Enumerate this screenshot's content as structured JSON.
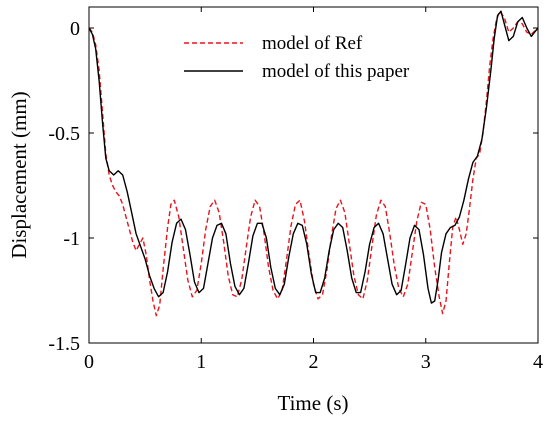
{
  "chart_data": {
    "type": "line",
    "title": "",
    "xlabel": "Time (s)",
    "ylabel": "Displacement (mm)",
    "xlim": [
      0,
      4
    ],
    "ylim": [
      -1.5,
      0.1
    ],
    "xticks": [
      0,
      1,
      2,
      3,
      4
    ],
    "xtick_labels": [
      "0",
      "1",
      "2",
      "3",
      "4"
    ],
    "yticks": [
      0,
      -0.5,
      -1,
      -1.5
    ],
    "ytick_labels": [
      "0",
      "-0.5",
      "-1",
      "-1.5"
    ],
    "grid": false,
    "legend_position": "top-right",
    "series": [
      {
        "name": "model of Ref",
        "color": "#e8141b",
        "dash": "dashed",
        "points": [
          [
            0,
            0
          ],
          [
            0.03,
            -0.02
          ],
          [
            0.06,
            -0.08
          ],
          [
            0.09,
            -0.2
          ],
          [
            0.12,
            -0.4
          ],
          [
            0.15,
            -0.6
          ],
          [
            0.18,
            -0.7
          ],
          [
            0.21,
            -0.75
          ],
          [
            0.24,
            -0.78
          ],
          [
            0.27,
            -0.8
          ],
          [
            0.3,
            -0.84
          ],
          [
            0.33,
            -0.9
          ],
          [
            0.36,
            -0.96
          ],
          [
            0.39,
            -1.02
          ],
          [
            0.42,
            -1.06
          ],
          [
            0.45,
            -1.03
          ],
          [
            0.48,
            -1.0
          ],
          [
            0.51,
            -1.08
          ],
          [
            0.54,
            -1.2
          ],
          [
            0.57,
            -1.3
          ],
          [
            0.6,
            -1.37
          ],
          [
            0.63,
            -1.32
          ],
          [
            0.66,
            -1.15
          ],
          [
            0.7,
            -0.95
          ],
          [
            0.73,
            -0.84
          ],
          [
            0.76,
            -0.82
          ],
          [
            0.8,
            -0.9
          ],
          [
            0.84,
            -1.05
          ],
          [
            0.88,
            -1.2
          ],
          [
            0.92,
            -1.28
          ],
          [
            0.96,
            -1.25
          ],
          [
            1.0,
            -1.12
          ],
          [
            1.04,
            -0.96
          ],
          [
            1.08,
            -0.85
          ],
          [
            1.12,
            -0.82
          ],
          [
            1.16,
            -0.88
          ],
          [
            1.2,
            -1.02
          ],
          [
            1.24,
            -1.18
          ],
          [
            1.28,
            -1.27
          ],
          [
            1.32,
            -1.28
          ],
          [
            1.36,
            -1.2
          ],
          [
            1.4,
            -1.05
          ],
          [
            1.44,
            -0.9
          ],
          [
            1.48,
            -0.82
          ],
          [
            1.52,
            -0.85
          ],
          [
            1.56,
            -0.98
          ],
          [
            1.6,
            -1.14
          ],
          [
            1.64,
            -1.25
          ],
          [
            1.68,
            -1.29
          ],
          [
            1.72,
            -1.25
          ],
          [
            1.76,
            -1.1
          ],
          [
            1.8,
            -0.94
          ],
          [
            1.84,
            -0.84
          ],
          [
            1.88,
            -0.82
          ],
          [
            1.92,
            -0.92
          ],
          [
            1.96,
            -1.08
          ],
          [
            2.0,
            -1.22
          ],
          [
            2.04,
            -1.29
          ],
          [
            2.08,
            -1.27
          ],
          [
            2.12,
            -1.15
          ],
          [
            2.16,
            -0.99
          ],
          [
            2.2,
            -0.86
          ],
          [
            2.24,
            -0.82
          ],
          [
            2.28,
            -0.88
          ],
          [
            2.32,
            -1.03
          ],
          [
            2.36,
            -1.18
          ],
          [
            2.4,
            -1.27
          ],
          [
            2.44,
            -1.29
          ],
          [
            2.48,
            -1.2
          ],
          [
            2.52,
            -1.04
          ],
          [
            2.56,
            -0.89
          ],
          [
            2.6,
            -0.82
          ],
          [
            2.64,
            -0.85
          ],
          [
            2.68,
            -0.98
          ],
          [
            2.72,
            -1.13
          ],
          [
            2.76,
            -1.24
          ],
          [
            2.8,
            -1.28
          ],
          [
            2.84,
            -1.22
          ],
          [
            2.88,
            -1.07
          ],
          [
            2.92,
            -0.92
          ],
          [
            2.96,
            -0.83
          ],
          [
            3.0,
            -0.84
          ],
          [
            3.04,
            -0.96
          ],
          [
            3.08,
            -1.14
          ],
          [
            3.12,
            -1.28
          ],
          [
            3.15,
            -1.36
          ],
          [
            3.18,
            -1.3
          ],
          [
            3.21,
            -1.12
          ],
          [
            3.24,
            -0.95
          ],
          [
            3.27,
            -0.9
          ],
          [
            3.3,
            -0.96
          ],
          [
            3.33,
            -1.03
          ],
          [
            3.36,
            -0.98
          ],
          [
            3.39,
            -0.86
          ],
          [
            3.42,
            -0.72
          ],
          [
            3.45,
            -0.62
          ],
          [
            3.48,
            -0.6
          ],
          [
            3.51,
            -0.5
          ],
          [
            3.54,
            -0.35
          ],
          [
            3.57,
            -0.18
          ],
          [
            3.6,
            -0.05
          ],
          [
            3.63,
            0.04
          ],
          [
            3.66,
            0.08
          ],
          [
            3.7,
            0.05
          ],
          [
            3.74,
            -0.02
          ],
          [
            3.78,
            0.0
          ],
          [
            3.82,
            0.03
          ],
          [
            3.86,
            0.02
          ],
          [
            3.9,
            -0.02
          ],
          [
            3.94,
            -0.03
          ],
          [
            3.98,
            -0.01
          ],
          [
            4.0,
            0.0
          ]
        ]
      },
      {
        "name": "model of this paper",
        "color": "#000000",
        "dash": "solid",
        "points": [
          [
            0,
            0
          ],
          [
            0.03,
            -0.03
          ],
          [
            0.06,
            -0.1
          ],
          [
            0.09,
            -0.25
          ],
          [
            0.12,
            -0.45
          ],
          [
            0.15,
            -0.62
          ],
          [
            0.18,
            -0.68
          ],
          [
            0.22,
            -0.7
          ],
          [
            0.26,
            -0.68
          ],
          [
            0.3,
            -0.7
          ],
          [
            0.34,
            -0.78
          ],
          [
            0.38,
            -0.88
          ],
          [
            0.42,
            -0.98
          ],
          [
            0.46,
            -1.04
          ],
          [
            0.5,
            -1.1
          ],
          [
            0.54,
            -1.18
          ],
          [
            0.58,
            -1.24
          ],
          [
            0.62,
            -1.28
          ],
          [
            0.66,
            -1.26
          ],
          [
            0.7,
            -1.16
          ],
          [
            0.74,
            -1.02
          ],
          [
            0.78,
            -0.93
          ],
          [
            0.82,
            -0.91
          ],
          [
            0.86,
            -0.96
          ],
          [
            0.9,
            -1.08
          ],
          [
            0.94,
            -1.21
          ],
          [
            0.98,
            -1.26
          ],
          [
            1.02,
            -1.24
          ],
          [
            1.06,
            -1.12
          ],
          [
            1.1,
            -1.0
          ],
          [
            1.14,
            -0.94
          ],
          [
            1.18,
            -0.93
          ],
          [
            1.22,
            -0.98
          ],
          [
            1.26,
            -1.12
          ],
          [
            1.3,
            -1.23
          ],
          [
            1.34,
            -1.27
          ],
          [
            1.38,
            -1.24
          ],
          [
            1.42,
            -1.12
          ],
          [
            1.46,
            -0.99
          ],
          [
            1.5,
            -0.93
          ],
          [
            1.54,
            -0.93
          ],
          [
            1.58,
            -1.0
          ],
          [
            1.62,
            -1.14
          ],
          [
            1.66,
            -1.24
          ],
          [
            1.7,
            -1.27
          ],
          [
            1.74,
            -1.22
          ],
          [
            1.78,
            -1.09
          ],
          [
            1.82,
            -0.98
          ],
          [
            1.86,
            -0.93
          ],
          [
            1.9,
            -0.94
          ],
          [
            1.94,
            -1.03
          ],
          [
            1.98,
            -1.17
          ],
          [
            2.02,
            -1.26
          ],
          [
            2.06,
            -1.26
          ],
          [
            2.1,
            -1.19
          ],
          [
            2.14,
            -1.06
          ],
          [
            2.18,
            -0.96
          ],
          [
            2.22,
            -0.93
          ],
          [
            2.26,
            -0.95
          ],
          [
            2.3,
            -1.06
          ],
          [
            2.34,
            -1.19
          ],
          [
            2.38,
            -1.26
          ],
          [
            2.42,
            -1.26
          ],
          [
            2.46,
            -1.16
          ],
          [
            2.5,
            -1.03
          ],
          [
            2.54,
            -0.95
          ],
          [
            2.58,
            -0.93
          ],
          [
            2.62,
            -0.98
          ],
          [
            2.66,
            -1.1
          ],
          [
            2.7,
            -1.22
          ],
          [
            2.74,
            -1.27
          ],
          [
            2.78,
            -1.25
          ],
          [
            2.82,
            -1.13
          ],
          [
            2.86,
            -1.0
          ],
          [
            2.9,
            -0.94
          ],
          [
            2.94,
            -0.96
          ],
          [
            2.98,
            -1.08
          ],
          [
            3.02,
            -1.24
          ],
          [
            3.05,
            -1.31
          ],
          [
            3.08,
            -1.3
          ],
          [
            3.11,
            -1.2
          ],
          [
            3.14,
            -1.07
          ],
          [
            3.18,
            -0.98
          ],
          [
            3.22,
            -0.95
          ],
          [
            3.26,
            -0.94
          ],
          [
            3.3,
            -0.9
          ],
          [
            3.34,
            -0.82
          ],
          [
            3.38,
            -0.72
          ],
          [
            3.42,
            -0.64
          ],
          [
            3.46,
            -0.61
          ],
          [
            3.5,
            -0.53
          ],
          [
            3.54,
            -0.38
          ],
          [
            3.58,
            -0.2
          ],
          [
            3.61,
            -0.05
          ],
          [
            3.64,
            0.06
          ],
          [
            3.67,
            0.08
          ],
          [
            3.7,
            0.02
          ],
          [
            3.74,
            -0.06
          ],
          [
            3.78,
            -0.04
          ],
          [
            3.82,
            0.03
          ],
          [
            3.86,
            0.05
          ],
          [
            3.9,
            0.0
          ],
          [
            3.94,
            -0.04
          ],
          [
            3.97,
            -0.02
          ],
          [
            4.0,
            0.0
          ]
        ]
      }
    ]
  }
}
